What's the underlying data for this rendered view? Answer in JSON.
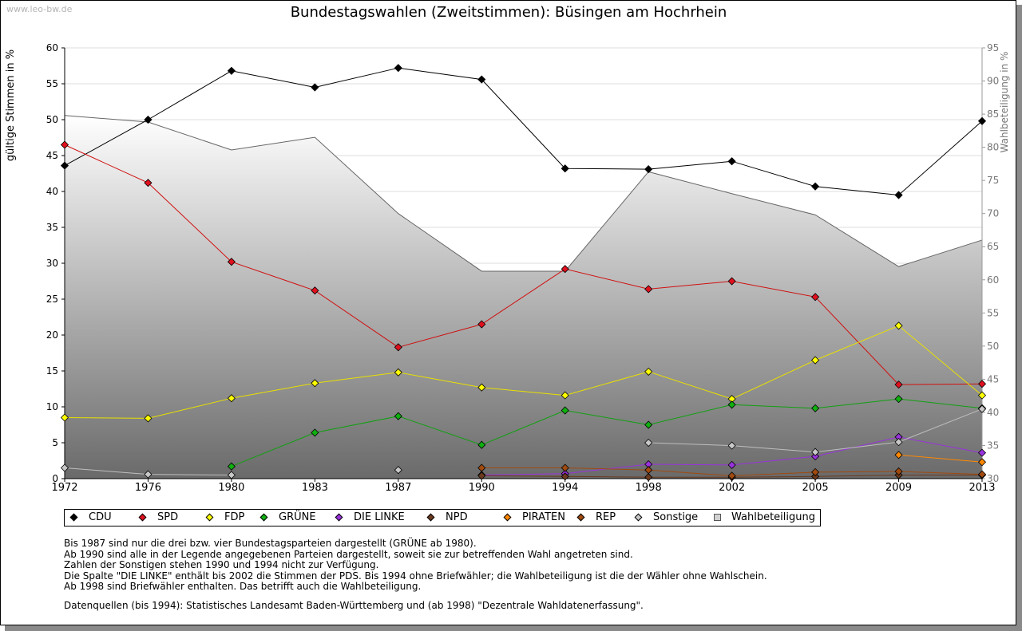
{
  "watermark": "www.leo-bw.de",
  "chart_data": {
    "type": "line",
    "title": "Bundestagswahlen (Zweitstimmen): Büsingen am Hochrhein",
    "ylabel": "gültige Stimmen in %",
    "y2label": "Wahlbeteiligung in %",
    "categories": [
      "1972",
      "1976",
      "1980",
      "1983",
      "1987",
      "1990",
      "1994",
      "1998",
      "2002",
      "2005",
      "2009",
      "2013"
    ],
    "ylim": [
      0,
      60
    ],
    "yticks": [
      0,
      5,
      10,
      15,
      20,
      25,
      30,
      35,
      40,
      45,
      50,
      55,
      60
    ],
    "y2lim": [
      30,
      95
    ],
    "y2ticks": [
      30,
      35,
      40,
      45,
      50,
      55,
      60,
      65,
      70,
      75,
      80,
      85,
      90,
      95
    ],
    "grid": true,
    "series": [
      {
        "name": "CDU",
        "color": "#000000",
        "stroke": "#000000",
        "values": [
          43.6,
          50.0,
          56.8,
          54.5,
          57.2,
          55.6,
          43.2,
          43.1,
          44.2,
          40.7,
          39.5,
          49.8
        ]
      },
      {
        "name": "SPD",
        "color": "#e0101e",
        "stroke": "#d01010",
        "values": [
          46.5,
          41.2,
          30.2,
          26.2,
          18.3,
          21.5,
          29.2,
          26.4,
          27.5,
          25.3,
          13.1,
          13.2
        ]
      },
      {
        "name": "FDP",
        "color": "#ffff00",
        "stroke": "#e8e000",
        "values": [
          8.5,
          8.4,
          11.2,
          13.3,
          14.8,
          12.7,
          11.6,
          14.9,
          11.1,
          16.5,
          21.3,
          11.6
        ]
      },
      {
        "name": "GRÜNE",
        "color": "#10b010",
        "stroke": "#10a010",
        "values": [
          null,
          null,
          1.7,
          6.4,
          8.7,
          4.7,
          9.5,
          7.5,
          10.3,
          9.8,
          11.1,
          9.8
        ]
      },
      {
        "name": "DIE LINKE",
        "color": "#9933dd",
        "stroke": "#9933dd",
        "values": [
          null,
          null,
          null,
          null,
          null,
          0.5,
          0.7,
          2.0,
          1.9,
          3.1,
          5.8,
          3.6
        ]
      },
      {
        "name": "NPD",
        "color": "#6b3a1e",
        "stroke": "#6b3a1e",
        "values": [
          null,
          null,
          null,
          null,
          null,
          0.4,
          0.3,
          0.2,
          0.2,
          0.3,
          0.5,
          0.5
        ]
      },
      {
        "name": "PIRATEN",
        "color": "#ff8800",
        "stroke": "#ff8800",
        "values": [
          null,
          null,
          null,
          null,
          null,
          null,
          null,
          null,
          null,
          null,
          3.3,
          2.3
        ]
      },
      {
        "name": "REP",
        "color": "#a04a10",
        "stroke": "#a04a10",
        "values": [
          null,
          null,
          null,
          null,
          null,
          1.5,
          1.5,
          1.2,
          0.4,
          0.9,
          1.0,
          0.6
        ]
      },
      {
        "name": "Sonstige",
        "color": "#c8c8c8",
        "stroke": "#bebebe",
        "values": [
          1.5,
          0.6,
          0.5,
          null,
          1.2,
          null,
          null,
          5.0,
          4.6,
          3.7,
          5.1,
          9.7
        ]
      }
    ],
    "turnout": {
      "name": "Wahlbeteiligung",
      "values": [
        84.8,
        83.8,
        79.6,
        81.5,
        70.0,
        61.3,
        61.3,
        76.3,
        73.0,
        69.8,
        62.0,
        66.0
      ]
    }
  },
  "notes": [
    "Bis 1987 sind nur die drei bzw. vier Bundestagsparteien dargestellt (GRÜNE ab 1980).",
    "Ab 1990 sind alle in der Legende angegebenen Parteien dargestellt, soweit sie zur betreffenden Wahl angetreten sind.",
    "Zahlen der Sonstigen stehen 1990 und 1994 nicht zur Verfügung.",
    "Die Spalte \"DIE LINKE\" enthält bis 2002 die Stimmen der PDS. Bis 1994 ohne Briefwähler; die Wahlbeteiligung ist die der Wähler ohne Wahlschein.",
    "Ab 1998 sind Briefwähler enthalten. Das betrifft auch die Wahlbeteiligung."
  ],
  "source": "Datenquellen (bis 1994): Statistisches Landesamt Baden-Württemberg und (ab 1998) \"Dezentrale Wahldatenerfassung\"."
}
